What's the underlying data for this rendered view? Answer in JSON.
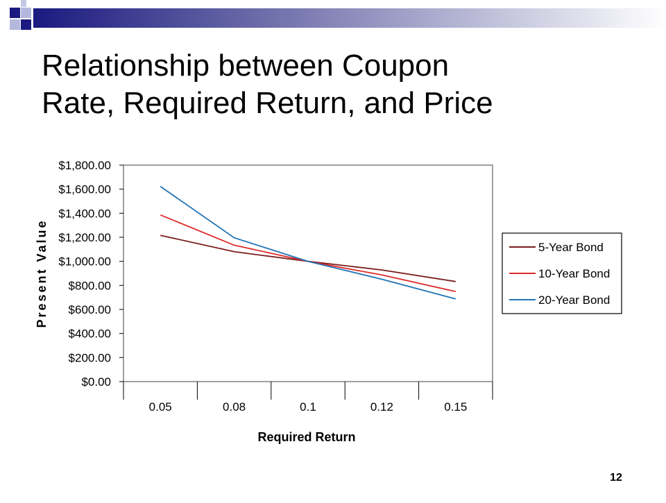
{
  "slide": {
    "title_line1": "Relationship between Coupon",
    "title_line2": "Rate, Required Return, and Price",
    "page_number": "12"
  },
  "colors": {
    "deco_navy": "#1a1a80",
    "deco_light": "#b4b8dc"
  },
  "chart_data": {
    "type": "line",
    "categories": [
      "0.05",
      "0.08",
      "0.1",
      "0.12",
      "0.15"
    ],
    "y_ticks": [
      "$0.00",
      "$200.00",
      "$400.00",
      "$600.00",
      "$800.00",
      "$1,000.00",
      "$1,200.00",
      "$1,400.00",
      "$1,600.00",
      "$1,800.00"
    ],
    "ylim": [
      0,
      1800
    ],
    "xlabel": "Required Return",
    "ylabel": "Present Value",
    "grid": false,
    "legend_position": "right",
    "series": [
      {
        "name": "5-Year Bond",
        "color": "#7a1c1c",
        "values": [
          1216,
          1080,
          1000,
          928,
          832
        ]
      },
      {
        "name": "10-Year Bond",
        "color": "#dd2a2a",
        "values": [
          1386,
          1134,
          1000,
          887,
          749
        ]
      },
      {
        "name": "20-Year Bond",
        "color": "#1f72b4",
        "values": [
          1623,
          1196,
          1000,
          851,
          687
        ]
      }
    ]
  }
}
